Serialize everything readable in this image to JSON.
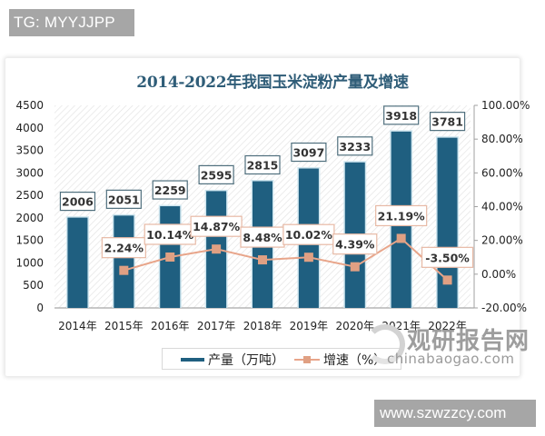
{
  "watermarks": {
    "top_left": "TG: MYYJJPP",
    "bottom_right": "www.szwzzcy.com",
    "source_cn": "观研报告网",
    "source_en": "chinabaogao.com"
  },
  "legend": {
    "bar_label": "产量（万吨）",
    "line_label": "增速（%）"
  },
  "colors": {
    "bar": "#1f5f80",
    "line": "#e8a58a",
    "marker": "#e0a083",
    "title": "#2f5d78"
  },
  "chart_data": {
    "type": "bar+line",
    "title": "2014-2022年我国玉米淀粉产量及增速",
    "categories": [
      "2014年",
      "2015年",
      "2016年",
      "2017年",
      "2018年",
      "2019年",
      "2020年",
      "2021年",
      "2022年"
    ],
    "series": [
      {
        "name": "产量（万吨）",
        "type": "bar",
        "axis": "left",
        "values": [
          2006,
          2051,
          2259,
          2595,
          2815,
          3097,
          3233,
          3918,
          3781
        ],
        "labels": [
          "2006",
          "2051",
          "2259",
          "2595",
          "2815",
          "3097",
          "3233",
          "3918",
          "3781"
        ]
      },
      {
        "name": "增速（%）",
        "type": "line",
        "axis": "right",
        "values": [
          null,
          2.24,
          10.14,
          14.87,
          8.48,
          10.02,
          4.39,
          21.19,
          -3.5
        ],
        "labels": [
          "",
          "2.24%",
          "10.14%",
          "14.87%",
          "8.48%",
          "10.02%",
          "4.39%",
          "21.19%",
          "-3.50%"
        ]
      }
    ],
    "left_axis": {
      "ylim": [
        0,
        4500
      ],
      "ticks": [
        "0",
        "500",
        "1000",
        "1500",
        "2000",
        "2500",
        "3000",
        "3500",
        "4000",
        "4500"
      ]
    },
    "right_axis": {
      "ylim": [
        -20,
        100
      ],
      "ticks": [
        "-20.00%",
        "0.00%",
        "20.00%",
        "40.00%",
        "60.00%",
        "80.00%",
        "100.00%"
      ]
    },
    "xlabel": "",
    "ylabel": "",
    "legend_position": "bottom",
    "grid": false
  }
}
